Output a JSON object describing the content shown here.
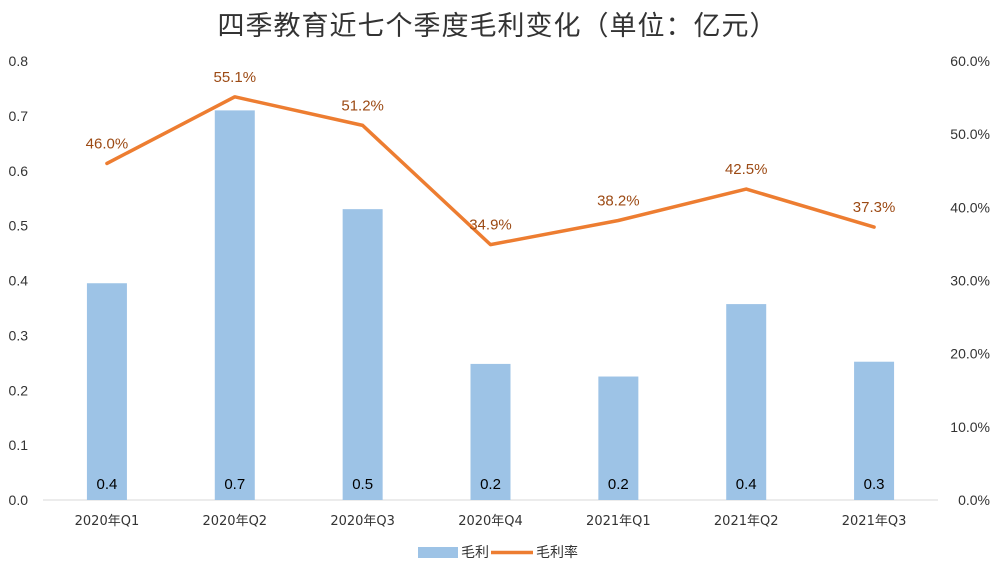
{
  "chart_data": {
    "type": "bar+line",
    "title": "四季教育近七个季度毛利变化（单位：亿元）",
    "categories": [
      "2020年Q1",
      "2020年Q2",
      "2020年Q3",
      "2020年Q4",
      "2021年Q1",
      "2021年Q2",
      "2021年Q3"
    ],
    "series": [
      {
        "name": "毛利",
        "type": "bar",
        "axis": "left",
        "values": [
          0.395,
          0.71,
          0.53,
          0.248,
          0.225,
          0.357,
          0.252
        ],
        "labels": [
          "0.4",
          "0.7",
          "0.5",
          "0.2",
          "0.2",
          "0.4",
          "0.3"
        ],
        "color": "#9dc3e6"
      },
      {
        "name": "毛利率",
        "type": "line",
        "axis": "right",
        "values": [
          46.0,
          55.1,
          51.2,
          34.9,
          38.2,
          42.5,
          37.3
        ],
        "labels": [
          "46.0%",
          "55.1%",
          "51.2%",
          "34.9%",
          "38.2%",
          "42.5%",
          "37.3%"
        ],
        "color": "#ed7d31",
        "label_color": "#9c4a14"
      }
    ],
    "y_left": {
      "min": 0,
      "max": 0.8,
      "ticks": [
        "0.0",
        "0.1",
        "0.2",
        "0.3",
        "0.4",
        "0.5",
        "0.6",
        "0.7",
        "0.8"
      ]
    },
    "y_right": {
      "min": 0,
      "max": 60,
      "ticks": [
        "0.0%",
        "10.0%",
        "20.0%",
        "30.0%",
        "40.0%",
        "50.0%",
        "60.0%"
      ]
    },
    "legend": {
      "position": "bottom",
      "entries": [
        "毛利",
        "毛利率"
      ]
    },
    "grid": false
  }
}
